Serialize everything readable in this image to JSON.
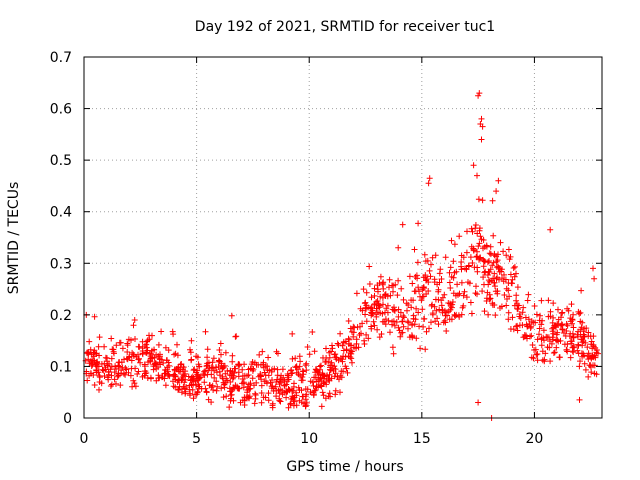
{
  "chart_data": {
    "type": "scatter",
    "title": "Day 192 of 2021, SRMTID for receiver tuc1",
    "xlabel": "GPS time / hours",
    "ylabel": "SRMTID / TECUs",
    "xlim": [
      0,
      23
    ],
    "ylim": [
      0,
      0.7
    ],
    "xticks": [
      0,
      5,
      10,
      15,
      20
    ],
    "yticks": [
      0,
      0.1,
      0.2,
      0.3,
      0.4,
      0.5,
      0.6,
      0.7
    ],
    "xtick_labels": [
      "0",
      "5",
      "10",
      "15",
      "20"
    ],
    "ytick_labels": [
      "0",
      "0.1",
      "0.2",
      "0.3",
      "0.4",
      "0.5",
      "0.6",
      "0.7"
    ],
    "grid": true,
    "marker": "plus",
    "color": "#ff0000",
    "points_description_is_not_rendered": false,
    "series": [
      {
        "name": "SRMTID",
        "trend": [
          [
            0.0,
            0.12
          ],
          [
            0.5,
            0.1
          ],
          [
            1.0,
            0.09
          ],
          [
            1.5,
            0.1
          ],
          [
            2.0,
            0.11
          ],
          [
            2.5,
            0.11
          ],
          [
            3.0,
            0.11
          ],
          [
            3.5,
            0.1
          ],
          [
            4.0,
            0.09
          ],
          [
            4.5,
            0.08
          ],
          [
            5.0,
            0.08
          ],
          [
            5.5,
            0.08
          ],
          [
            6.0,
            0.09
          ],
          [
            6.5,
            0.07
          ],
          [
            7.0,
            0.07
          ],
          [
            7.5,
            0.07
          ],
          [
            8.0,
            0.08
          ],
          [
            8.5,
            0.07
          ],
          [
            9.0,
            0.06
          ],
          [
            9.5,
            0.06
          ],
          [
            10.0,
            0.07
          ],
          [
            10.5,
            0.08
          ],
          [
            11.0,
            0.09
          ],
          [
            11.5,
            0.11
          ],
          [
            12.0,
            0.15
          ],
          [
            12.5,
            0.19
          ],
          [
            13.0,
            0.21
          ],
          [
            13.5,
            0.22
          ],
          [
            14.0,
            0.2
          ],
          [
            14.5,
            0.2
          ],
          [
            15.0,
            0.23
          ],
          [
            15.5,
            0.25
          ],
          [
            16.0,
            0.24
          ],
          [
            16.5,
            0.25
          ],
          [
            17.0,
            0.28
          ],
          [
            17.5,
            0.33
          ],
          [
            18.0,
            0.27
          ],
          [
            18.5,
            0.29
          ],
          [
            19.0,
            0.25
          ],
          [
            19.5,
            0.18
          ],
          [
            20.0,
            0.15
          ],
          [
            20.5,
            0.16
          ],
          [
            21.0,
            0.17
          ],
          [
            21.5,
            0.17
          ],
          [
            22.0,
            0.15
          ],
          [
            22.5,
            0.12
          ],
          [
            22.9,
            0.1
          ]
        ],
        "spread": [
          [
            0.0,
            0.05
          ],
          [
            12.0,
            0.06
          ],
          [
            15.0,
            0.09
          ],
          [
            17.5,
            0.12
          ],
          [
            19.5,
            0.07
          ],
          [
            22.9,
            0.06
          ]
        ],
        "point_count": 1400,
        "notable_points": [
          {
            "x": 17.55,
            "y": 0.63
          },
          {
            "x": 17.5,
            "y": 0.625
          },
          {
            "x": 17.65,
            "y": 0.58
          },
          {
            "x": 17.6,
            "y": 0.57
          },
          {
            "x": 17.7,
            "y": 0.565
          },
          {
            "x": 17.65,
            "y": 0.54
          },
          {
            "x": 15.35,
            "y": 0.465
          },
          {
            "x": 15.3,
            "y": 0.455
          },
          {
            "x": 17.3,
            "y": 0.49
          },
          {
            "x": 17.45,
            "y": 0.47
          },
          {
            "x": 18.4,
            "y": 0.46
          },
          {
            "x": 18.3,
            "y": 0.44
          },
          {
            "x": 20.7,
            "y": 0.365
          },
          {
            "x": 14.15,
            "y": 0.375
          },
          {
            "x": 13.95,
            "y": 0.33
          },
          {
            "x": 18.1,
            "y": 0.0
          },
          {
            "x": 17.5,
            "y": 0.03
          },
          {
            "x": 22.6,
            "y": 0.29
          },
          {
            "x": 22.65,
            "y": 0.27
          },
          {
            "x": 2.25,
            "y": 0.19
          },
          {
            "x": 2.2,
            "y": 0.18
          },
          {
            "x": 0.1,
            "y": 0.2
          },
          {
            "x": 9.85,
            "y": 0.025
          },
          {
            "x": 22.0,
            "y": 0.035
          }
        ]
      }
    ]
  }
}
